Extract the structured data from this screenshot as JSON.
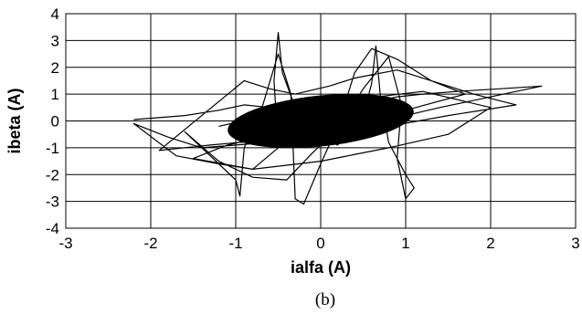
{
  "chart_data": {
    "type": "line",
    "title": "",
    "xlabel": "ialfa (A)",
    "ylabel": "ibeta (A)",
    "caption": "(b)",
    "xlim": [
      -3,
      3
    ],
    "ylim": [
      -4,
      4
    ],
    "xticks": [
      -3,
      -2,
      -1,
      0,
      1,
      2,
      3
    ],
    "yticks": [
      -4,
      -3,
      -2,
      -1,
      0,
      1,
      2,
      3,
      4
    ],
    "grid": true,
    "legend": "none",
    "line_color": "#000000",
    "series": [
      {
        "x": [
          -2.2,
          -1.6,
          -1.2,
          -0.9,
          -0.6,
          -0.3,
          0.0,
          0.3,
          0.6,
          0.9,
          1.2,
          1.6,
          2.1,
          2.6,
          2.0,
          1.4,
          1.0,
          0.6,
          0.2,
          -0.2,
          -0.6,
          -1.0,
          -1.4,
          -1.8,
          -2.2,
          -1.7,
          -1.2,
          -0.8,
          -0.5,
          -0.55,
          -0.5,
          -0.45,
          -0.3,
          -0.1,
          0.2,
          0.5,
          0.6,
          0.65,
          0.7,
          0.8,
          1.0,
          1.1,
          1.0,
          0.9,
          0.95,
          0.8,
          0.5,
          0.2,
          -0.1,
          -0.4,
          -0.8,
          -1.2,
          -1.6,
          -1.0,
          -0.95,
          -0.9,
          -0.7,
          -0.5,
          -0.35,
          -0.3,
          -0.2,
          0.0,
          0.2,
          0.4,
          0.6,
          0.9,
          1.3,
          1.8,
          2.3,
          1.5,
          0.8,
          0.1,
          -0.6,
          -1.3,
          -1.9,
          -0.9,
          -0.6,
          -0.3,
          0.1,
          0.4,
          0.9,
          1.3,
          1.7,
          1.0,
          0.3,
          -0.4,
          -1.1,
          -1.5,
          -0.8,
          0.0,
          0.8,
          1.5,
          2.0,
          1.2,
          0.4,
          -0.5,
          -1.2
        ],
        "y": [
          0.05,
          0.2,
          0.4,
          0.6,
          0.5,
          0.3,
          0.1,
          0.4,
          0.7,
          0.9,
          1.0,
          1.1,
          1.2,
          1.3,
          0.9,
          0.5,
          0.2,
          -0.1,
          -0.4,
          -0.6,
          -0.8,
          -0.9,
          -1.0,
          -0.6,
          -0.1,
          -1.3,
          -1.6,
          -1.8,
          -1.0,
          1.5,
          3.3,
          1.8,
          0.5,
          -0.5,
          -0.9,
          0.2,
          1.4,
          2.8,
          1.0,
          -0.8,
          -2.0,
          -2.5,
          -2.9,
          -1.4,
          0.6,
          2.4,
          1.2,
          -0.3,
          -1.2,
          -2.2,
          -2.1,
          -1.5,
          -0.4,
          -2.2,
          -2.8,
          -1.0,
          0.4,
          2.5,
          1.0,
          -2.9,
          -3.1,
          -1.6,
          -0.2,
          1.8,
          2.7,
          2.3,
          1.5,
          1.0,
          0.6,
          0.2,
          -0.2,
          -0.5,
          -0.7,
          -0.9,
          -1.1,
          1.5,
          1.2,
          1.0,
          1.3,
          1.6,
          1.9,
          1.5,
          1.0,
          0.4,
          0.0,
          -0.4,
          -0.9,
          -1.4,
          -1.8,
          -1.5,
          -1.0,
          -0.5,
          0.5,
          1.1,
          0.8,
          0.3,
          -0.2
        ]
      }
    ]
  }
}
